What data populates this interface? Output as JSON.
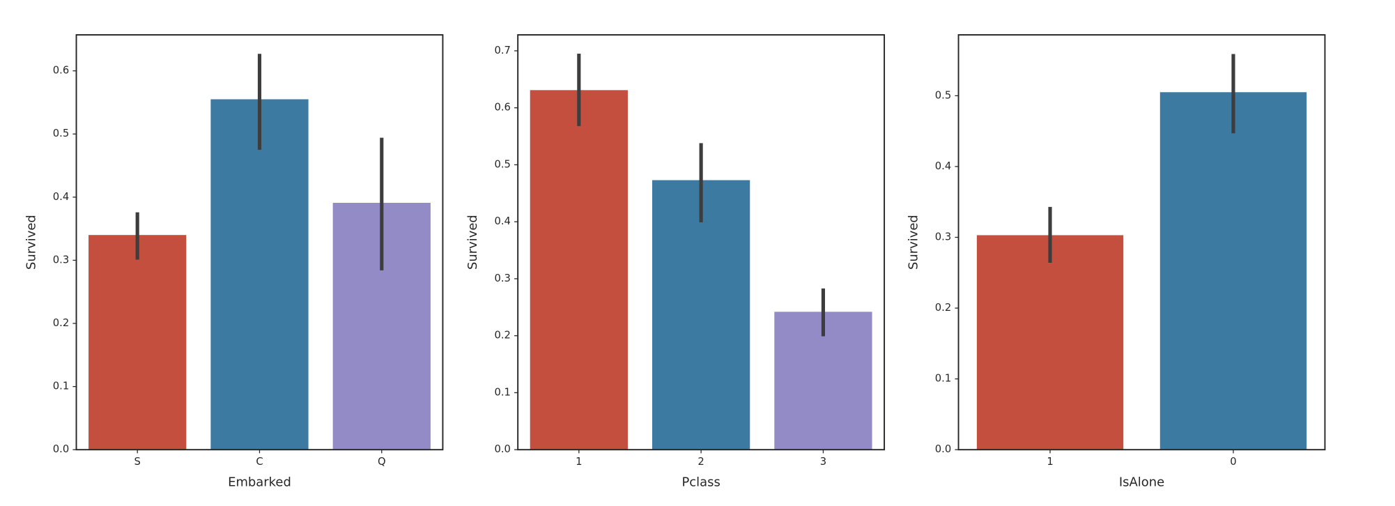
{
  "chart_data": [
    {
      "type": "bar",
      "xlabel": "Embarked",
      "ylabel": "Survived",
      "categories": [
        "S",
        "C",
        "Q"
      ],
      "values": [
        0.34,
        0.555,
        0.391
      ],
      "errors": [
        [
          0.301,
          0.376
        ],
        [
          0.475,
          0.627
        ],
        [
          0.284,
          0.494
        ]
      ],
      "colors": [
        "#c44f3f",
        "#3d7aa2",
        "#938bc6"
      ],
      "ylim": [
        0,
        0.657
      ],
      "yticks": [
        {
          "value": 0,
          "label": "0.0"
        },
        0.1,
        0.2,
        0.3,
        0.4,
        0.5,
        0.6
      ]
    },
    {
      "type": "bar",
      "xlabel": "Pclass",
      "ylabel": "Survived",
      "categories": [
        "1",
        "2",
        "3"
      ],
      "values": [
        0.631,
        0.473,
        0.242
      ],
      "errors": [
        [
          0.568,
          0.695
        ],
        [
          0.399,
          0.538
        ],
        [
          0.199,
          0.283
        ]
      ],
      "colors": [
        "#c44f3f",
        "#3d7aa2",
        "#938bc6"
      ],
      "ylim": [
        0,
        0.728
      ],
      "yticks": [
        {
          "value": 0,
          "label": "0.0"
        },
        0.1,
        0.2,
        0.3,
        0.4,
        0.5,
        0.6,
        0.7
      ]
    },
    {
      "type": "bar",
      "xlabel": "IsAlone",
      "ylabel": "Survived",
      "categories": [
        "1",
        "0"
      ],
      "values": [
        0.303,
        0.505
      ],
      "errors": [
        [
          0.264,
          0.343
        ],
        [
          0.447,
          0.559
        ]
      ],
      "colors": [
        "#c44f3f",
        "#3d7aa2"
      ],
      "ylim": [
        0,
        0.586
      ],
      "yticks": [
        {
          "value": 0,
          "label": "0.0"
        },
        0.1,
        0.2,
        0.3,
        0.4,
        0.5
      ]
    }
  ]
}
